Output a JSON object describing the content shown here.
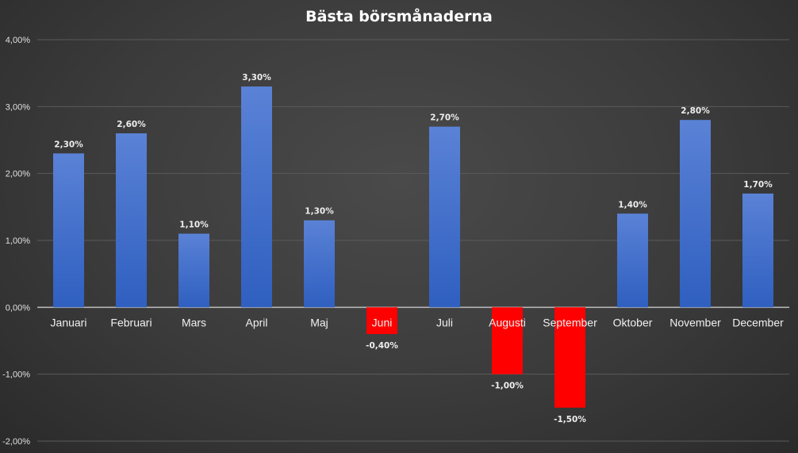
{
  "chart_data": {
    "type": "bar",
    "title": "Bästa börsmånaderna",
    "categories": [
      "Januari",
      "Februari",
      "Mars",
      "April",
      "Maj",
      "Juni",
      "Juli",
      "Augusti",
      "September",
      "Oktober",
      "November",
      "December"
    ],
    "values": [
      2.3,
      2.6,
      1.1,
      3.3,
      1.3,
      -0.4,
      2.7,
      -1.0,
      -1.5,
      1.4,
      2.8,
      1.7
    ],
    "data_labels": [
      "2,30%",
      "2,60%",
      "1,10%",
      "3,30%",
      "1,30%",
      "-0,40%",
      "2,70%",
      "-1,00%",
      "-1,50%",
      "1,40%",
      "2,80%",
      "1,70%"
    ],
    "yticks": [
      4,
      3,
      2,
      1,
      0,
      -1,
      -2
    ],
    "ytick_labels": [
      "4,00%",
      "3,00%",
      "2,00%",
      "1,00%",
      "0,00%",
      "-1,00%",
      "-2,00%"
    ],
    "ylim": [
      -2,
      4
    ],
    "xlabel": "",
    "ylabel": "",
    "grid": true,
    "colors": {
      "positive": "#3f6fc9",
      "negative": "#ff0000"
    }
  }
}
